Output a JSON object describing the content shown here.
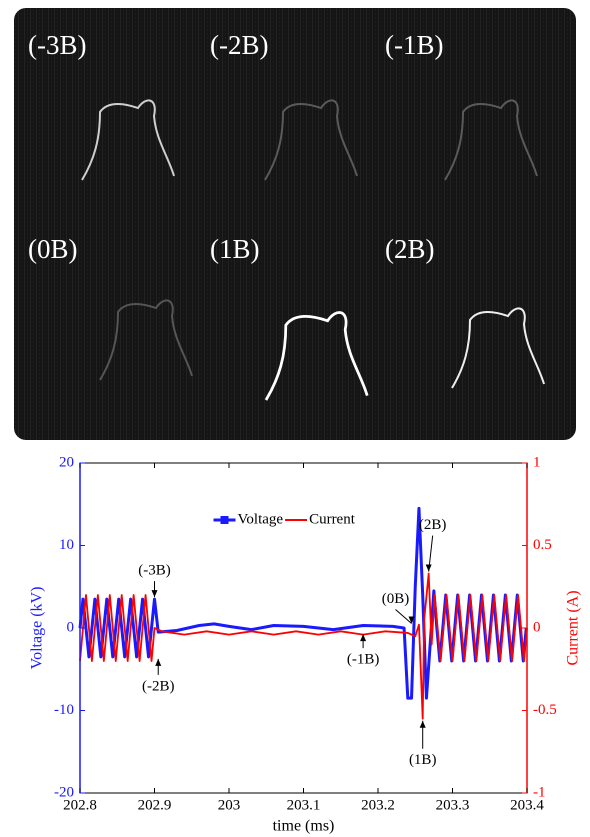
{
  "images": {
    "labels": [
      "(-3B)",
      "(-2B)",
      "(-1B)",
      "(0B)",
      "(1B)",
      "(2B)"
    ]
  },
  "chart_data": {
    "type": "line",
    "xlabel": "time (ms)",
    "ylabel": "Voltage (kV)",
    "y2label": "Current (A)",
    "xlim": [
      202.8,
      203.4
    ],
    "xticks": [
      202.8,
      202.9,
      203,
      203.1,
      203.2,
      203.3,
      203.4
    ],
    "ylim": [
      -20,
      20
    ],
    "yticks": [
      -20,
      -10,
      0,
      10,
      20
    ],
    "y2lim": [
      -1,
      1
    ],
    "y2ticks": [
      -1,
      -0.5,
      0,
      0.5,
      1
    ],
    "legend": "upper center",
    "series": [
      {
        "name": "Voltage",
        "color": "#1a1aff",
        "axis": "y",
        "x": [
          202.8,
          202.804,
          202.808,
          202.812,
          202.816,
          202.82,
          202.824,
          202.828,
          202.832,
          202.836,
          202.84,
          202.844,
          202.848,
          202.852,
          202.856,
          202.86,
          202.864,
          202.868,
          202.872,
          202.876,
          202.88,
          202.884,
          202.888,
          202.892,
          202.896,
          202.9,
          202.905,
          202.93,
          202.96,
          202.98,
          203.0,
          203.03,
          203.06,
          203.1,
          203.14,
          203.18,
          203.22,
          203.235,
          203.24,
          203.245,
          203.25,
          203.255,
          203.26,
          203.265,
          203.27,
          203.275,
          203.279,
          203.283,
          203.287,
          203.291,
          203.295,
          203.299,
          203.303,
          203.307,
          203.311,
          203.315,
          203.319,
          203.323,
          203.327,
          203.331,
          203.335,
          203.339,
          203.343,
          203.347,
          203.351,
          203.355,
          203.359,
          203.363,
          203.367,
          203.371,
          203.375,
          203.379,
          203.383,
          203.387,
          203.391,
          203.395,
          203.399
        ],
        "values": [
          0,
          3.5,
          0,
          -3.5,
          0,
          3.5,
          0,
          -3.5,
          0,
          3.5,
          0,
          -3.5,
          0,
          3.5,
          0,
          -3.5,
          0,
          3.5,
          0,
          -3.5,
          0,
          3.5,
          0,
          -3.5,
          0,
          3.5,
          -0.5,
          -0.3,
          0.3,
          0.5,
          0.2,
          -0.2,
          0.3,
          0.2,
          -0.2,
          0.3,
          0.2,
          0,
          -8.5,
          -8.5,
          5,
          14.5,
          4,
          -8.5,
          -2,
          4.5,
          0,
          -4,
          0,
          4,
          0,
          -4,
          0,
          4,
          0,
          -4,
          0,
          4,
          0,
          -4,
          0,
          4,
          0,
          -4,
          0,
          4,
          0,
          -4,
          0,
          4,
          0,
          -4,
          0,
          4,
          0,
          -4,
          0
        ]
      },
      {
        "name": "Current",
        "color": "#ff0000",
        "axis": "y2",
        "x": [
          202.8,
          202.804,
          202.808,
          202.812,
          202.816,
          202.82,
          202.824,
          202.828,
          202.832,
          202.836,
          202.84,
          202.844,
          202.848,
          202.852,
          202.856,
          202.86,
          202.864,
          202.868,
          202.872,
          202.876,
          202.88,
          202.884,
          202.888,
          202.892,
          202.896,
          202.9,
          202.91,
          202.94,
          202.97,
          203.0,
          203.03,
          203.06,
          203.09,
          203.12,
          203.15,
          203.18,
          203.21,
          203.24,
          203.25,
          203.255,
          203.26,
          203.262,
          203.268,
          203.272,
          203.276,
          203.28,
          203.284,
          203.288,
          203.292,
          203.296,
          203.3,
          203.304,
          203.308,
          203.312,
          203.316,
          203.32,
          203.324,
          203.328,
          203.332,
          203.336,
          203.34,
          203.344,
          203.348,
          203.352,
          203.356,
          203.36,
          203.364,
          203.368,
          203.372,
          203.376,
          203.38,
          203.384,
          203.388,
          203.392,
          203.396,
          203.4
        ],
        "values": [
          -0.2,
          0,
          0.2,
          0,
          -0.2,
          0,
          0.2,
          0,
          -0.2,
          0,
          0.2,
          0,
          -0.2,
          0,
          0.2,
          0,
          -0.2,
          0,
          0.2,
          0,
          -0.2,
          0,
          0.2,
          0,
          -0.2,
          0,
          -0.02,
          -0.04,
          -0.02,
          -0.04,
          -0.02,
          -0.04,
          -0.02,
          -0.04,
          -0.02,
          -0.04,
          -0.02,
          -0.03,
          -0.05,
          0.02,
          -0.55,
          0.05,
          0.33,
          -0.1,
          0.2,
          0,
          -0.2,
          0,
          0.2,
          0,
          -0.2,
          0,
          0.2,
          0,
          -0.2,
          0,
          0.2,
          0,
          -0.2,
          0,
          0.2,
          0,
          -0.2,
          0,
          0.2,
          0,
          -0.2,
          0,
          0.2,
          0,
          -0.2,
          0,
          0.2,
          0,
          -0.2,
          0
        ]
      }
    ],
    "annotations": [
      {
        "text": "(-3B)",
        "x": 202.9,
        "y": 3.5
      },
      {
        "text": "(-2B)",
        "x": 202.905,
        "y": -3.5
      },
      {
        "text": "(-1B)",
        "x": 203.18,
        "y": -0.5
      },
      {
        "text": "(0B)",
        "x": 203.245,
        "y": 0.3
      },
      {
        "text": "(1B)",
        "x": 203.26,
        "y": -11
      },
      {
        "text": "(2B)",
        "x": 203.268,
        "y": 6.6
      }
    ]
  }
}
